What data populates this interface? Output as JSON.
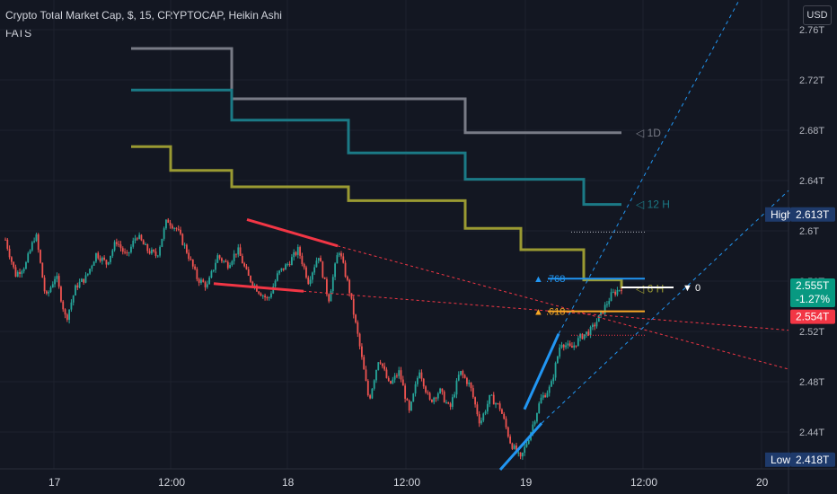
{
  "header": {
    "title": "Crypto Total Market Cap, $, 15, CRYPTOCAP, Heikin Ashi",
    "indicator": "FATS"
  },
  "currency_button": "USD",
  "colors": {
    "background": "#131722",
    "up": "#26a69a",
    "down": "#ef5350",
    "gray_line": "#787b86",
    "teal_line": "#1b7a86",
    "olive_line": "#9a9a32",
    "fib_blue": "#2196f3",
    "fib_orange": "#f9a825",
    "red_line": "#f23645"
  },
  "chart_data": {
    "type": "candlestick",
    "series_style": "Heikin Ashi",
    "y_axis_ticks": [
      "2.76T",
      "2.72T",
      "2.68T",
      "2.64T",
      "2.6T",
      "2.56T",
      "2.52T",
      "2.48T",
      "2.44T"
    ],
    "ylim": [
      2.405,
      2.772
    ],
    "x_axis_ticks": [
      "17",
      "12:00",
      "18",
      "12:00",
      "19",
      "12:00",
      "20"
    ],
    "ohlc_path": [
      2.593,
      2.565,
      2.573,
      2.598,
      2.546,
      2.565,
      2.529,
      2.556,
      2.563,
      2.582,
      2.574,
      2.592,
      2.579,
      2.597,
      2.585,
      2.58,
      2.609,
      2.601,
      2.583,
      2.562,
      2.556,
      2.58,
      2.573,
      2.585,
      2.564,
      2.553,
      2.545,
      2.566,
      2.574,
      2.585,
      2.56,
      2.581,
      2.545,
      2.586,
      2.555,
      2.512,
      2.465,
      2.5,
      2.477,
      2.488,
      2.455,
      2.49,
      2.464,
      2.473,
      2.458,
      2.488,
      2.477,
      2.447,
      2.468,
      2.459,
      2.432,
      2.418,
      2.44,
      2.466,
      2.476,
      2.512,
      2.506,
      2.516,
      2.521,
      2.534,
      2.549,
      2.555
    ],
    "last_price": "2.555T",
    "change_pct": "-1.27%",
    "close_label": "2.554T",
    "high": {
      "label": "High",
      "value": "2.613T"
    },
    "low": {
      "label": "Low",
      "value": "2.418T"
    },
    "fats_steps": [
      {
        "name": "1D",
        "color": "gray",
        "levels": [
          2.745,
          2.705,
          2.678
        ]
      },
      {
        "name": "12 H",
        "color": "teal",
        "levels": [
          2.712,
          2.688,
          2.662,
          2.641,
          2.621
        ]
      },
      {
        "name": "6 H",
        "color": "olive",
        "levels": [
          2.667,
          2.648,
          2.635,
          2.624,
          2.602,
          2.585,
          2.561,
          2.554
        ]
      }
    ],
    "fib_levels": [
      {
        "label": ".768",
        "value": 2.562
      },
      {
        "label": ".618",
        "value": 2.536
      },
      {
        "label": "0",
        "value": 2.555
      }
    ],
    "step_label_1d": "1D",
    "step_label_12h": "12 H",
    "step_label_6h": "6 H"
  }
}
